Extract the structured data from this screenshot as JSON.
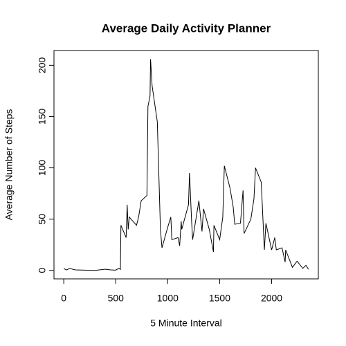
{
  "chart_data": {
    "type": "line",
    "title": "Average Daily Activity Planner",
    "x_label": "5 Minute Interval",
    "y_label": "Average Number of Steps",
    "x": [
      0,
      30,
      55,
      110,
      200,
      300,
      400,
      450,
      500,
      530,
      545,
      550,
      600,
      610,
      620,
      630,
      700,
      720,
      745,
      800,
      810,
      830,
      835,
      850,
      900,
      930,
      945,
      1000,
      1030,
      1040,
      1100,
      1115,
      1130,
      1135,
      1200,
      1210,
      1230,
      1240,
      1300,
      1330,
      1345,
      1400,
      1440,
      1445,
      1500,
      1530,
      1545,
      1600,
      1630,
      1645,
      1700,
      1725,
      1735,
      1800,
      1830,
      1845,
      1900,
      1930,
      1945,
      2000,
      2030,
      2045,
      2100,
      2130,
      2135,
      2200,
      2245,
      2300,
      2330,
      2355
    ],
    "series": [
      {
        "name": "steps",
        "color": "#000000",
        "values": [
          1.7,
          0.5,
          2,
          0.5,
          0.3,
          0,
          1.2,
          0.5,
          0.3,
          2,
          1,
          44,
          32,
          64,
          40,
          52,
          44,
          52,
          68,
          73,
          160,
          170,
          206,
          180,
          145,
          40,
          22,
          42,
          52,
          30,
          32,
          24,
          48,
          40,
          64,
          95,
          48,
          30,
          68,
          38,
          60,
          40,
          18,
          44,
          30,
          52,
          102,
          80,
          62,
          45,
          46,
          78,
          36,
          50,
          70,
          100,
          86,
          20,
          46,
          20,
          32,
          20,
          22,
          8,
          20,
          3,
          9,
          2,
          5,
          1
        ]
      }
    ],
    "xlim": [
      -94.2,
      2449.2
    ],
    "xticks": [
      0,
      500,
      1000,
      1500,
      2000
    ],
    "ylim": [
      -8.25,
      214.4
    ],
    "yticks": [
      0,
      50,
      100,
      150,
      200
    ]
  }
}
